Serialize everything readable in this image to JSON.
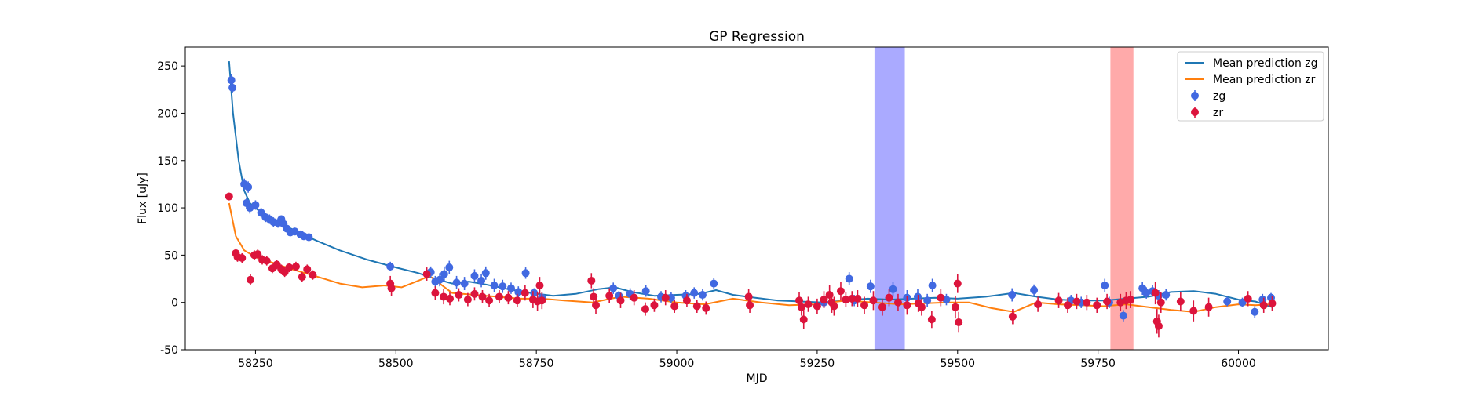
{
  "chart_data": {
    "type": "scatter",
    "title": "GP Regression",
    "xlabel": "MJD",
    "ylabel": "Flux [uJy]",
    "xlim": [
      58125,
      60160
    ],
    "ylim": [
      -50,
      270
    ],
    "xticks": [
      58250,
      58500,
      58750,
      59000,
      59250,
      59500,
      59750,
      60000
    ],
    "yticks": [
      -50,
      0,
      50,
      100,
      150,
      200,
      250
    ],
    "grid": false,
    "legend_position": "top-right",
    "legend": [
      "Mean prediction zg",
      "Mean prediction zr",
      "zg",
      "zr"
    ],
    "shaded_bands": [
      {
        "x_start": 59352,
        "x_end": 59406,
        "color": "#aaaaff"
      },
      {
        "x_start": 59772,
        "x_end": 59813,
        "color": "#ffaaaa"
      }
    ],
    "series": [
      {
        "name": "Mean prediction zg",
        "kind": "line",
        "color": "#1f77b4",
        "x": [
          58203,
          58210,
          58220,
          58230,
          58240,
          58260,
          58280,
          58300,
          58330,
          58360,
          58400,
          58450,
          58500,
          58540,
          58570,
          58600,
          58630,
          58660,
          58700,
          58740,
          58780,
          58820,
          58860,
          58890,
          58920,
          58960,
          59000,
          59040,
          59070,
          59100,
          59140,
          59180,
          59220,
          59260,
          59300,
          59340,
          59380,
          59420,
          59460,
          59500,
          59550,
          59600,
          59640,
          59680,
          59720,
          59760,
          59800,
          59840,
          59880,
          59920,
          59960,
          60000,
          60030,
          60060
        ],
        "y": [
          255,
          200,
          150,
          118,
          105,
          95,
          88,
          82,
          73,
          65,
          55,
          45,
          37,
          31,
          25,
          20,
          22,
          19,
          14,
          10,
          7,
          9,
          14,
          16,
          11,
          7,
          8,
          9,
          13,
          8,
          5,
          2,
          1,
          0,
          2,
          4,
          3,
          4,
          5,
          4,
          6,
          10,
          6,
          3,
          2,
          2,
          4,
          6,
          11,
          12,
          9,
          3,
          1,
          -5
        ]
      },
      {
        "name": "Mean prediction zr",
        "kind": "line",
        "color": "#ff7f0e",
        "x": [
          58203,
          58215,
          58230,
          58250,
          58280,
          58310,
          58350,
          58400,
          58440,
          58480,
          58510,
          58540,
          58560,
          58600,
          58640,
          58680,
          58720,
          58760,
          58800,
          58850,
          58900,
          58950,
          59000,
          59050,
          59100,
          59150,
          59200,
          59250,
          59300,
          59350,
          59400,
          59440,
          59480,
          59520,
          59560,
          59600,
          59640,
          59680,
          59720,
          59760,
          59800,
          59840,
          59880,
          59920,
          59960,
          60000,
          60030,
          60060
        ],
        "y": [
          105,
          70,
          55,
          48,
          42,
          36,
          29,
          20,
          16,
          18,
          16,
          23,
          28,
          10,
          8,
          6,
          4,
          4,
          2,
          0,
          6,
          4,
          0,
          -2,
          4,
          0,
          -3,
          -2,
          2,
          0,
          -2,
          -1,
          0,
          0,
          -6,
          -10,
          0,
          -2,
          -3,
          -4,
          -2,
          -5,
          -8,
          -10,
          -5,
          -2,
          -3,
          -2
        ]
      },
      {
        "name": "zg",
        "kind": "errorbar",
        "color": "#4169e1",
        "x": [
          58207,
          58209,
          58230,
          58234,
          58237,
          58240,
          58250,
          58260,
          58268,
          58275,
          58282,
          58290,
          58296,
          58300,
          58306,
          58312,
          58320,
          58330,
          58336,
          58345,
          58490,
          58562,
          58570,
          58578,
          58586,
          58595,
          58608,
          58622,
          58640,
          58652,
          58660,
          58675,
          58690,
          58705,
          58718,
          58731,
          58746,
          58760,
          58887,
          58897,
          58917,
          58945,
          58972,
          58990,
          59016,
          59031,
          59046,
          59066,
          59262,
          59307,
          59316,
          59345,
          59385,
          59410,
          59429,
          59446,
          59455,
          59480,
          59597,
          59636,
          59702,
          59720,
          59762,
          59770,
          59795,
          59829,
          59836,
          59847,
          59858,
          59871,
          59980,
          60007,
          60029,
          60043,
          60058
        ],
        "y": [
          235,
          227,
          125,
          105,
          122,
          100,
          103,
          95,
          90,
          88,
          85,
          84,
          88,
          83,
          78,
          74,
          75,
          72,
          70,
          69,
          38,
          32,
          22,
          24,
          30,
          37,
          21,
          20,
          28,
          23,
          31,
          18,
          17,
          15,
          11,
          31,
          10,
          5,
          15,
          7,
          9,
          12,
          6,
          5,
          7,
          10,
          8,
          20,
          0,
          25,
          2,
          17,
          14,
          5,
          6,
          2,
          18,
          3,
          8,
          13,
          2,
          0,
          18,
          0,
          -14,
          15,
          10,
          12,
          7,
          8,
          1,
          0,
          -10,
          3,
          5
        ],
        "yerr": [
          6,
          5,
          6,
          6,
          6,
          6,
          5,
          5,
          5,
          5,
          5,
          5,
          4,
          4,
          4,
          4,
          4,
          4,
          4,
          4,
          5,
          6,
          6,
          7,
          8,
          7,
          7,
          7,
          7,
          7,
          7,
          7,
          7,
          6,
          6,
          6,
          5,
          6,
          6,
          5,
          6,
          6,
          6,
          6,
          6,
          6,
          6,
          6,
          6,
          7,
          6,
          7,
          8,
          8,
          8,
          7,
          7,
          6,
          7,
          6,
          6,
          6,
          7,
          6,
          6,
          7,
          6,
          6,
          6,
          6,
          5,
          5,
          6,
          6,
          5
        ]
      },
      {
        "name": "zr",
        "kind": "errorbar",
        "color": "#dc143c",
        "x": [
          58203,
          58215,
          58218,
          58226,
          58241,
          58248,
          58254,
          58262,
          58270,
          58280,
          58288,
          58296,
          58302,
          58310,
          58322,
          58333,
          58342,
          58352,
          58490,
          58492,
          58555,
          58570,
          58585,
          58596,
          58612,
          58628,
          58640,
          58654,
          58666,
          58684,
          58700,
          58716,
          58730,
          58744,
          58752,
          58756,
          58760,
          58848,
          58852,
          58856,
          58880,
          58900,
          58924,
          58944,
          58960,
          58980,
          58996,
          59018,
          59036,
          59052,
          59128,
          59130,
          59218,
          59222,
          59226,
          59234,
          59250,
          59262,
          59272,
          59276,
          59280,
          59292,
          59301,
          59312,
          59322,
          59334,
          59350,
          59366,
          59378,
          59394,
          59410,
          59430,
          59436,
          59454,
          59470,
          59496,
          59500,
          59502,
          59598,
          59643,
          59680,
          59696,
          59712,
          59730,
          59748,
          59766,
          59790,
          59800,
          59808,
          59852,
          59855,
          59858,
          59862,
          59897,
          59920,
          59947,
          60017,
          60045,
          60060
        ],
        "y": [
          112,
          52,
          48,
          47,
          24,
          50,
          51,
          45,
          44,
          36,
          40,
          35,
          32,
          37,
          38,
          27,
          35,
          29,
          20,
          15,
          30,
          10,
          6,
          4,
          8,
          3,
          9,
          6,
          2,
          6,
          5,
          2,
          10,
          3,
          1,
          18,
          2,
          23,
          6,
          -3,
          7,
          2,
          5,
          -7,
          -3,
          5,
          -4,
          2,
          -4,
          -6,
          6,
          -3,
          2,
          -5,
          -18,
          -2,
          -4,
          3,
          8,
          0,
          -4,
          12,
          3,
          4,
          4,
          -3,
          2,
          -5,
          5,
          0,
          -3,
          -1,
          -5,
          -18,
          5,
          -5,
          20,
          -21,
          -15,
          -2,
          2,
          -3,
          1,
          0,
          -3,
          1,
          0,
          2,
          3,
          10,
          -20,
          -25,
          0,
          1,
          -9,
          -5,
          4,
          -3,
          -1
        ],
        "yerr": [
          4,
          5,
          5,
          5,
          6,
          5,
          5,
          5,
          5,
          5,
          5,
          5,
          5,
          5,
          5,
          5,
          5,
          5,
          8,
          8,
          7,
          7,
          8,
          7,
          7,
          7,
          7,
          7,
          7,
          7,
          7,
          7,
          8,
          9,
          10,
          9,
          9,
          8,
          9,
          9,
          8,
          8,
          8,
          7,
          7,
          8,
          7,
          7,
          7,
          7,
          8,
          8,
          9,
          9,
          10,
          8,
          8,
          9,
          10,
          11,
          10,
          10,
          8,
          8,
          9,
          9,
          10,
          9,
          9,
          9,
          10,
          9,
          9,
          9,
          9,
          12,
          10,
          11,
          8,
          8,
          8,
          8,
          8,
          8,
          8,
          8,
          9,
          9,
          9,
          12,
          13,
          12,
          11,
          10,
          11,
          10,
          8,
          8,
          8
        ]
      }
    ]
  }
}
